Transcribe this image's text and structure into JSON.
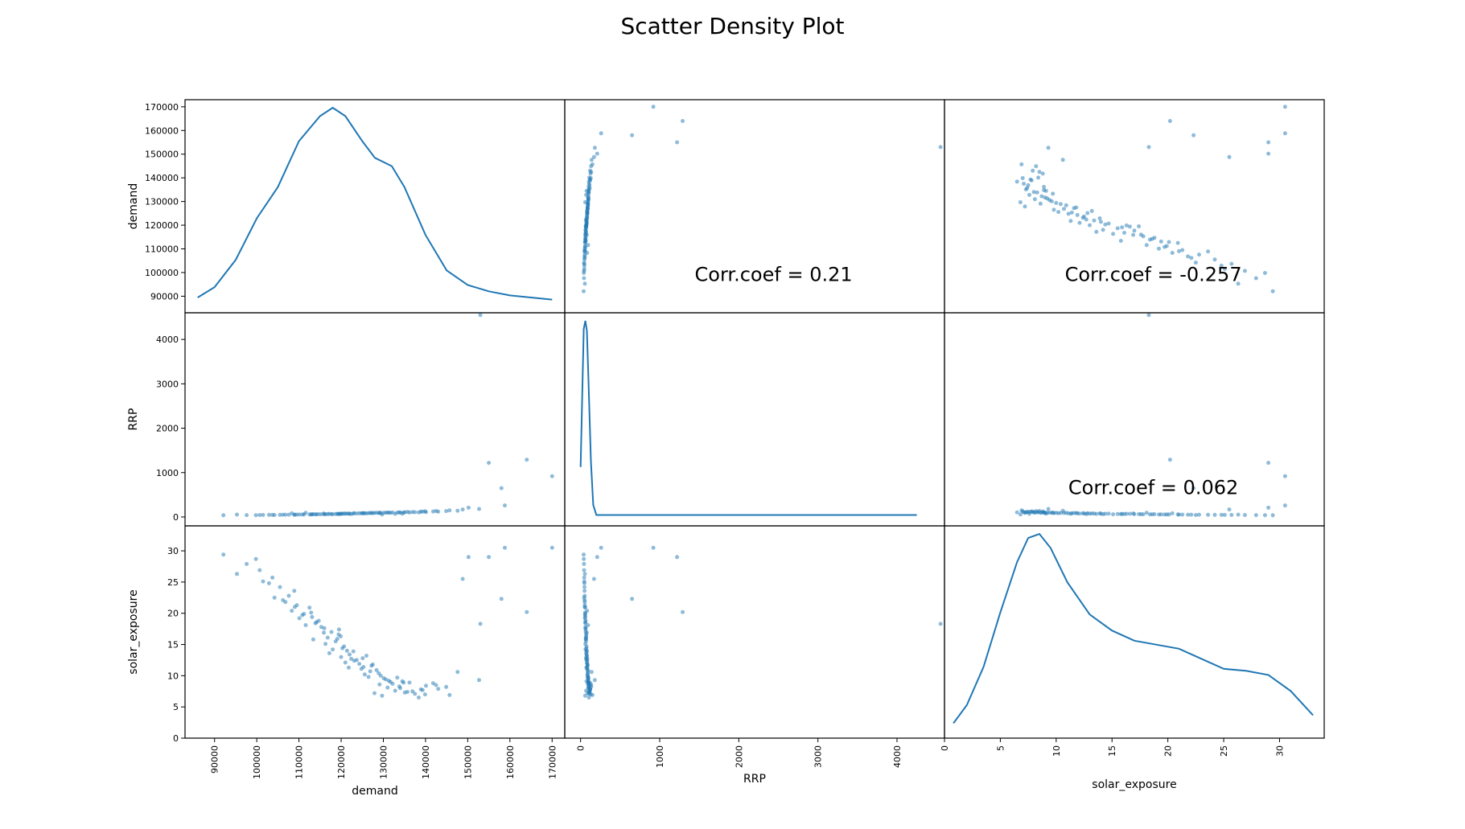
{
  "title": "Scatter Density Plot",
  "chart_data": {
    "type": "scatter",
    "title": "Scatter Density Plot",
    "variables": [
      "demand",
      "RRP",
      "solar_exposure"
    ],
    "point_color": "#1f77b4",
    "axes": {
      "demand": {
        "label": "demand",
        "range": [
          83000,
          173000
        ],
        "ticks": [
          90000,
          100000,
          110000,
          120000,
          130000,
          140000,
          150000,
          160000,
          170000
        ],
        "tick_labels": [
          "90000",
          "100000",
          "110000",
          "120000",
          "130000",
          "140000",
          "150000",
          "160000",
          "170000"
        ]
      },
      "RRP": {
        "label": "RRP",
        "range": [
          -200,
          4600
        ],
        "ticks": [
          0,
          1000,
          2000,
          3000,
          4000
        ],
        "tick_labels": [
          "0",
          "1000",
          "2000",
          "3000",
          "4000"
        ]
      },
      "solar_exposure": {
        "label": "solar_exposure",
        "range": [
          0,
          34
        ],
        "ticks": [
          0,
          5,
          10,
          15,
          20,
          25,
          30
        ],
        "tick_labels": [
          "0",
          "5",
          "10",
          "15",
          "20",
          "25",
          "30"
        ]
      }
    },
    "density": {
      "demand": {
        "x": [
          86000,
          90000,
          95000,
          100000,
          105000,
          110000,
          115000,
          118000,
          121000,
          125000,
          128000,
          132000,
          135000,
          140000,
          145000,
          150000,
          155000,
          160000,
          165000,
          170000
        ],
        "y": [
          0.05,
          0.1,
          0.23,
          0.43,
          0.58,
          0.8,
          0.92,
          0.96,
          0.92,
          0.8,
          0.72,
          0.68,
          0.58,
          0.35,
          0.18,
          0.11,
          0.08,
          0.06,
          0.05,
          0.04
        ]
      },
      "RRP": {
        "x": [
          0,
          40,
          60,
          80,
          100,
          130,
          160,
          200,
          300,
          500,
          1000,
          2000,
          3000,
          4000,
          4250
        ],
        "y": [
          0.27,
          0.96,
          1.0,
          0.95,
          0.7,
          0.3,
          0.08,
          0.03,
          0.03,
          0.03,
          0.03,
          0.03,
          0.03,
          0.03,
          0.03
        ]
      },
      "solar_exposure": {
        "x": [
          0.8,
          2,
          3.5,
          5,
          6.5,
          7.5,
          8.5,
          9.5,
          11,
          13,
          15,
          17,
          19,
          21,
          23,
          25,
          27,
          29,
          31,
          33
        ],
        "y": [
          0.05,
          0.14,
          0.33,
          0.6,
          0.85,
          0.97,
          0.99,
          0.92,
          0.75,
          0.59,
          0.51,
          0.46,
          0.44,
          0.42,
          0.37,
          0.32,
          0.31,
          0.29,
          0.21,
          0.09
        ]
      }
    },
    "samples": {
      "demand": [
        118000,
        126500,
        104200,
        132800,
        111600,
        95300,
        140100,
        122400,
        115900,
        129700,
        108300,
        136200,
        147600,
        121800,
        99800,
        113400,
        127900,
        134500,
        117200,
        110800,
        143000,
        102900,
        124300,
        131000,
        152700,
        119500,
        106800,
        138400,
        116300,
        125600,
        92100,
        129100,
        114700,
        121000,
        135700,
        108900,
        133300,
        126000,
        119900,
        141800,
        112500,
        128400,
        103700,
        123100,
        137500,
        115300,
        130600,
        110100,
        144900,
        120700,
        97600,
        127200,
        134000,
        118700,
        106200,
        139300,
        122900,
        113900,
        131700,
        125100,
        158800,
        101500,
        116800,
        132200,
        120300,
        109500,
        136900,
        124800,
        145700,
        119100,
        128900,
        111200,
        133800,
        105500,
        122000,
        138900,
        117700,
        126900,
        150200,
        114200,
        130100,
        121400,
        107600,
        135100,
        125300,
        112900,
        142500,
        119400,
        129400,
        100700,
        123700,
        139900,
        116000,
        131300,
        109000,
        127500,
        148800,
        120000,
        134800,
        113100,
        155000,
        164000,
        170000,
        158000,
        153000
      ],
      "RRP": [
        62,
        88,
        45,
        71,
        95,
        54,
        110,
        67,
        79,
        58,
        83,
        102,
        140,
        73,
        41,
        65,
        91,
        76,
        69,
        56,
        120,
        48,
        85,
        98,
        180,
        64,
        52,
        105,
        60,
        87,
        39,
        93,
        63,
        78,
        115,
        50,
        99,
        81,
        72,
        125,
        57,
        94,
        46,
        84,
        108,
        61,
        97,
        55,
        133,
        75,
        43,
        89,
        101,
        68,
        51,
        118,
        80,
        59,
        96,
        86,
        260,
        47,
        66,
        100,
        74,
        53,
        112,
        82,
        150,
        70,
        92,
        58,
        104,
        49,
        77,
        121,
        64,
        90,
        210,
        60,
        95,
        76,
        52,
        107,
        85,
        57,
        135,
        71,
        93,
        44,
        79,
        128,
        62,
        98,
        54,
        88,
        170,
        73,
        103,
        59,
        1220,
        1290,
        920,
        650,
        4550
      ],
      "solar_exposure": [
        14.2,
        9.8,
        22.5,
        7.6,
        18.1,
        26.3,
        8.4,
        12.7,
        16.9,
        6.8,
        20.4,
        8.9,
        10.6,
        11.3,
        28.7,
        15.8,
        7.2,
        9.1,
        13.6,
        19.7,
        7.9,
        24.8,
        11.9,
        8.1,
        9.3,
        17.4,
        21.8,
        6.5,
        15.1,
        10.2,
        29.4,
        8.6,
        18.8,
        12.1,
        7.4,
        23.6,
        9.7,
        13.2,
        16.3,
        8.8,
        20.9,
        10.9,
        25.7,
        12.4,
        7.1,
        17.8,
        9.4,
        19.2,
        8.2,
        14.7,
        27.9,
        11.6,
        8.0,
        15.5,
        22.1,
        7.7,
        13.9,
        18.4,
        9.0,
        12.8,
        30.5,
        25.1,
        16.1,
        8.7,
        14.4,
        21.3,
        7.5,
        11.1,
        6.9,
        15.9,
        10.4,
        19.9,
        8.3,
        24.2,
        13.4,
        7.8,
        17.0,
        10.7,
        29.0,
        18.6,
        9.6,
        14.0,
        22.8,
        7.3,
        11.4,
        20.1,
        8.5,
        16.6,
        10.0,
        26.9,
        12.5,
        7.0,
        17.6,
        9.2,
        21.0,
        11.8,
        25.5,
        13.0,
        8.9,
        19.4,
        29.0,
        20.2,
        30.5,
        22.3,
        18.3
      ]
    },
    "corr_coef": {
      "demand_RRP": "Corr.coef = 0.21",
      "demand_solar_exposure": "Corr.coef = -0.257",
      "RRP_solar_exposure": "Corr.coef = 0.062"
    },
    "grid": false
  }
}
